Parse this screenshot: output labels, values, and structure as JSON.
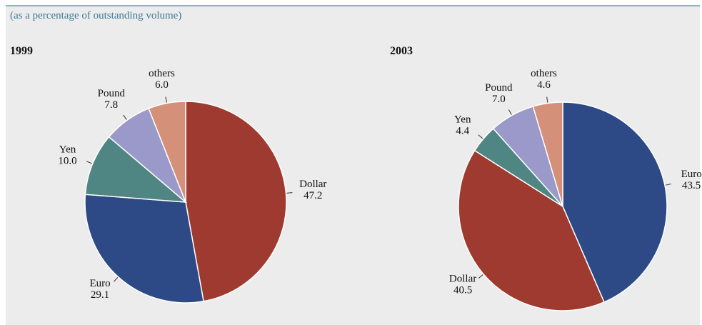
{
  "subtitle": "(as a percentage of outstanding volume)",
  "chart_data": [
    {
      "type": "pie",
      "title": "1999",
      "categories": [
        "Dollar",
        "Euro",
        "Yen",
        "Pound",
        "others"
      ],
      "values": [
        47.2,
        29.1,
        10.0,
        7.8,
        6.0
      ],
      "value_labels": [
        "47.2",
        "29.1",
        "10.0",
        "7.8",
        "6.0"
      ],
      "colors": [
        "#9e3a2f",
        "#2e4a86",
        "#4f8582",
        "#9a99c9",
        "#d49079"
      ]
    },
    {
      "type": "pie",
      "title": "2003",
      "categories": [
        "Euro",
        "Dollar",
        "Yen",
        "Pound",
        "others"
      ],
      "values": [
        43.5,
        40.5,
        4.4,
        7.0,
        4.6
      ],
      "value_labels": [
        "43.5",
        "40.5",
        "4.4",
        "7.0",
        "4.6"
      ],
      "colors": [
        "#2e4a86",
        "#9e3a2f",
        "#4f8582",
        "#9a99c9",
        "#d49079"
      ]
    }
  ]
}
